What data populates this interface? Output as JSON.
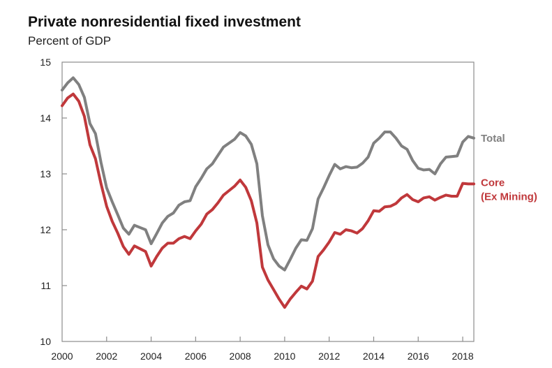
{
  "chart_data": {
    "type": "line",
    "title": "Private nonresidential fixed investment",
    "subtitle": "Percent of GDP",
    "xlabel": "",
    "ylabel": "",
    "xlim": [
      2000,
      2018.5
    ],
    "ylim": [
      10,
      15
    ],
    "xticks": [
      2000,
      2002,
      2004,
      2006,
      2008,
      2010,
      2012,
      2014,
      2016,
      2018
    ],
    "yticks": [
      10,
      11,
      12,
      13,
      14,
      15
    ],
    "grid": false,
    "series": [
      {
        "name": "Total",
        "label_lines": [
          "Total"
        ],
        "color": "#808080",
        "x": [
          2000,
          2000.25,
          2000.5,
          2000.75,
          2001,
          2001.25,
          2001.5,
          2001.75,
          2002,
          2002.25,
          2002.5,
          2002.75,
          2003,
          2003.25,
          2003.5,
          2003.75,
          2004,
          2004.25,
          2004.5,
          2004.75,
          2005,
          2005.25,
          2005.5,
          2005.75,
          2006,
          2006.25,
          2006.5,
          2006.75,
          2007,
          2007.25,
          2007.5,
          2007.75,
          2008,
          2008.25,
          2008.5,
          2008.75,
          2009,
          2009.25,
          2009.5,
          2009.75,
          2010,
          2010.25,
          2010.5,
          2010.75,
          2011,
          2011.25,
          2011.5,
          2011.75,
          2012,
          2012.25,
          2012.5,
          2012.75,
          2013,
          2013.25,
          2013.5,
          2013.75,
          2014,
          2014.25,
          2014.5,
          2014.75,
          2015,
          2015.25,
          2015.5,
          2015.75,
          2016,
          2016.25,
          2016.5,
          2016.75,
          2017,
          2017.25,
          2017.5,
          2017.75,
          2018,
          2018.25,
          2018.5
        ],
        "values": [
          14.5,
          14.63,
          14.72,
          14.6,
          14.37,
          13.9,
          13.72,
          13.2,
          12.75,
          12.5,
          12.27,
          12.03,
          11.92,
          12.08,
          12.04,
          12.0,
          11.75,
          11.93,
          12.12,
          12.24,
          12.3,
          12.44,
          12.5,
          12.52,
          12.77,
          12.92,
          13.09,
          13.18,
          13.33,
          13.48,
          13.55,
          13.62,
          13.74,
          13.68,
          13.53,
          13.18,
          12.25,
          11.73,
          11.48,
          11.35,
          11.28,
          11.47,
          11.67,
          11.82,
          11.81,
          12.02,
          12.55,
          12.75,
          12.97,
          13.17,
          13.09,
          13.13,
          13.11,
          13.12,
          13.19,
          13.3,
          13.55,
          13.64,
          13.75,
          13.75,
          13.64,
          13.5,
          13.44,
          13.24,
          13.1,
          13.07,
          13.08,
          13.0,
          13.18,
          13.3,
          13.31,
          13.32,
          13.57,
          13.67,
          13.64
        ]
      },
      {
        "name": "Core (Ex Mining)",
        "label_lines": [
          "Core",
          "(Ex Mining)"
        ],
        "color": "#c0383b",
        "x": [
          2000,
          2000.25,
          2000.5,
          2000.75,
          2001,
          2001.25,
          2001.5,
          2001.75,
          2002,
          2002.25,
          2002.5,
          2002.75,
          2003,
          2003.25,
          2003.5,
          2003.75,
          2004,
          2004.25,
          2004.5,
          2004.75,
          2005,
          2005.25,
          2005.5,
          2005.75,
          2006,
          2006.25,
          2006.5,
          2006.75,
          2007,
          2007.25,
          2007.5,
          2007.75,
          2008,
          2008.25,
          2008.5,
          2008.75,
          2009,
          2009.25,
          2009.5,
          2009.75,
          2010,
          2010.25,
          2010.5,
          2010.75,
          2011,
          2011.25,
          2011.5,
          2011.75,
          2012,
          2012.25,
          2012.5,
          2012.75,
          2013,
          2013.25,
          2013.5,
          2013.75,
          2014,
          2014.25,
          2014.5,
          2014.75,
          2015,
          2015.25,
          2015.5,
          2015.75,
          2016,
          2016.25,
          2016.5,
          2016.75,
          2017,
          2017.25,
          2017.5,
          2017.75,
          2018,
          2018.25,
          2018.5
        ],
        "values": [
          14.22,
          14.36,
          14.43,
          14.3,
          14.03,
          13.52,
          13.27,
          12.82,
          12.42,
          12.15,
          11.94,
          11.7,
          11.56,
          11.71,
          11.66,
          11.61,
          11.35,
          11.52,
          11.67,
          11.76,
          11.76,
          11.84,
          11.88,
          11.84,
          11.98,
          12.1,
          12.28,
          12.36,
          12.48,
          12.62,
          12.7,
          12.78,
          12.89,
          12.76,
          12.52,
          12.12,
          11.33,
          11.1,
          10.93,
          10.76,
          10.61,
          10.76,
          10.88,
          10.99,
          10.94,
          11.08,
          11.52,
          11.64,
          11.78,
          11.95,
          11.92,
          12.0,
          11.98,
          11.94,
          12.02,
          12.16,
          12.34,
          12.33,
          12.41,
          12.42,
          12.47,
          12.57,
          12.63,
          12.54,
          12.5,
          12.57,
          12.59,
          12.53,
          12.58,
          12.62,
          12.6,
          12.6,
          12.83,
          12.82,
          12.82
        ]
      }
    ]
  }
}
